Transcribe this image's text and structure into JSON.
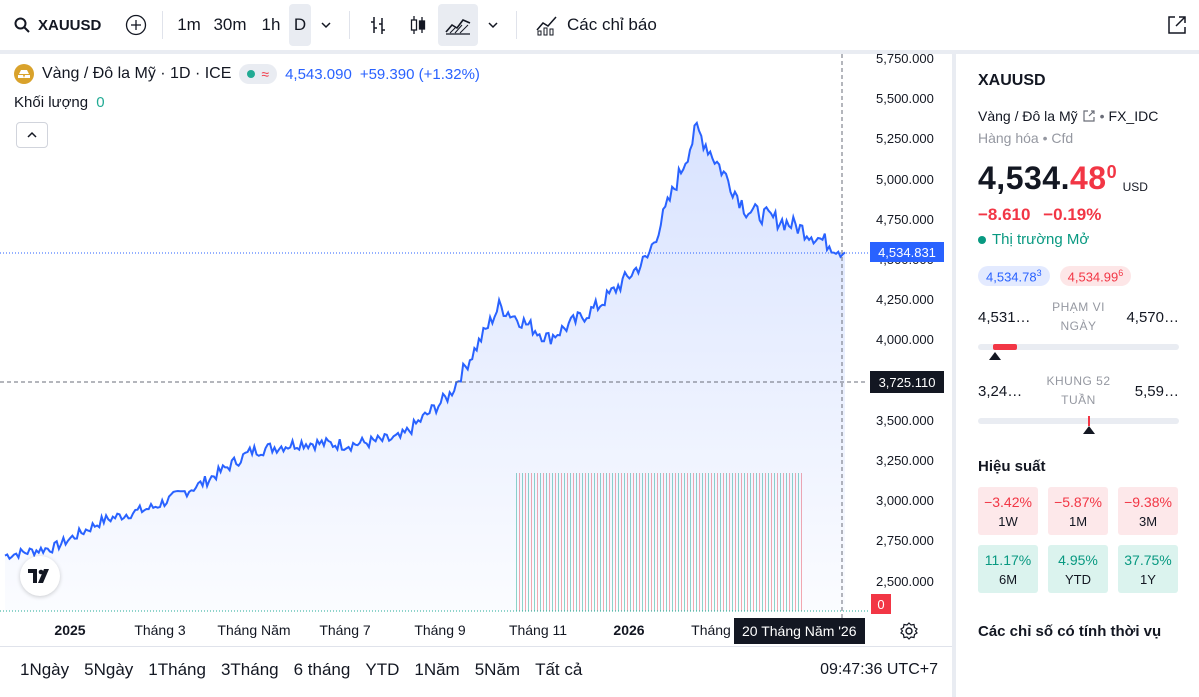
{
  "toolbar": {
    "symbol": "XAUUSD",
    "intervals": [
      "1m",
      "30m",
      "1h",
      "D"
    ],
    "active_interval": "D",
    "indicators_label": "Các chỉ báo"
  },
  "legend": {
    "title": "Vàng / Đô la Mỹ · 1D · ICE",
    "last": "4,543.090",
    "change": "+59.390 (+1.32%)",
    "volume_label": "Khối lượng",
    "volume_value": "0"
  },
  "price_axis": {
    "ticks": [
      "5,750.000",
      "5,500.000",
      "5,250.000",
      "5,000.000",
      "4,750.000",
      "4,500.000",
      "4,250.000",
      "4,000.000",
      "3,750.000",
      "3,500.000",
      "3,250.000",
      "3,000.000",
      "2,750.000",
      "2,500.000"
    ],
    "last_price_label": "4,534.831",
    "crosshair_price_label": "3,725.110",
    "volume_zero_label": "0"
  },
  "time_axis": {
    "ticks": [
      {
        "label": "2025",
        "bold": true
      },
      {
        "label": "Tháng 3",
        "bold": false
      },
      {
        "label": "Tháng Năm",
        "bold": false
      },
      {
        "label": "Tháng 7",
        "bold": false
      },
      {
        "label": "Tháng 9",
        "bold": false
      },
      {
        "label": "Tháng 11",
        "bold": false
      },
      {
        "label": "2026",
        "bold": true
      },
      {
        "label": "Tháng",
        "bold": false
      }
    ],
    "crosshair_date": "20 Tháng Năm '26"
  },
  "bottom_bar": {
    "ranges": [
      "1Ngày",
      "5Ngày",
      "1Tháng",
      "3Tháng",
      "6 tháng",
      "YTD",
      "1Năm",
      "5Năm",
      "Tất cả"
    ],
    "clock": "09:47:36 UTC+7"
  },
  "right_panel": {
    "symbol": "XAUUSD",
    "description": "Vàng / Đô la Mỹ",
    "exchange": "FX_IDC",
    "category": "Hàng hóa",
    "type": "Cfd",
    "price_black": "4,534.",
    "price_red": "48",
    "price_sup": "0",
    "currency": "USD",
    "change_abs": "−8.610",
    "change_pct": "−0.19%",
    "market_status": "Thị trường Mở",
    "bid": "4,534.78",
    "bid_sup": "3",
    "ask": "4,534.99",
    "ask_sup": "6",
    "day_range": {
      "low": "4,531…",
      "label": "PHẠM VI NGÀY",
      "high": "4,570…"
    },
    "week52_range": {
      "low": "3,24…",
      "label": "KHUNG 52 TUẦN",
      "high": "5,59…"
    },
    "performance_title": "Hiệu suất",
    "performance": [
      {
        "value": "−3.42%",
        "period": "1W",
        "sign": "neg"
      },
      {
        "value": "−5.87%",
        "period": "1M",
        "sign": "neg"
      },
      {
        "value": "−9.38%",
        "period": "3M",
        "sign": "neg"
      },
      {
        "value": "11.17%",
        "period": "6M",
        "sign": "pos"
      },
      {
        "value": "4.95%",
        "period": "YTD",
        "sign": "pos"
      },
      {
        "value": "37.75%",
        "period": "1Y",
        "sign": "pos"
      }
    ],
    "technicals_title": "Các chỉ số có tính thời vụ"
  },
  "colors": {
    "line": "#2962ff",
    "positive": "#089981",
    "negative": "#f23645"
  },
  "chart_data": {
    "type": "area",
    "x": [
      "2024-12",
      "2025-01",
      "2025-02",
      "2025-03",
      "2025-04",
      "2025-05",
      "2025-06",
      "2025-07",
      "2025-08",
      "2025-09",
      "2025-10",
      "2025-11",
      "2025-12",
      "2026-01",
      "2026-02",
      "2026-03",
      "2026-04",
      "2026-05"
    ],
    "values": [
      2650,
      2700,
      2870,
      2950,
      3100,
      3300,
      3350,
      3340,
      3380,
      3650,
      4200,
      4000,
      4200,
      4500,
      5300,
      4800,
      4700,
      4535
    ],
    "ylim": [
      2400,
      5780
    ]
  }
}
